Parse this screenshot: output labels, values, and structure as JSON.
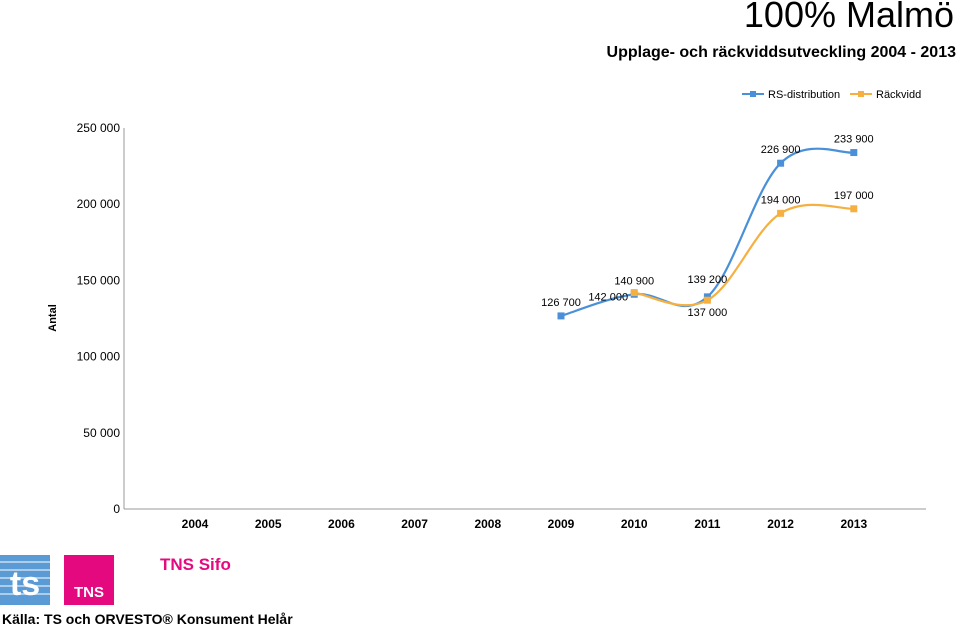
{
  "header": {
    "title": "100% Malmö",
    "subtitle": "Upplage- och räckviddsutveckling 2004 - 2013"
  },
  "logos": {
    "ts": "ts",
    "tns": "TNS",
    "tns_sifo": "TNS Sifo"
  },
  "footer": {
    "source": "Källa: TS och ORVESTO® Konsument Helår"
  },
  "chart_data": {
    "type": "line",
    "title": "",
    "xlabel": "",
    "ylabel": "Antal",
    "categories": [
      "2004",
      "2005",
      "2006",
      "2007",
      "2008",
      "2009",
      "2010",
      "2011",
      "2012",
      "2013"
    ],
    "ylim": [
      0,
      250000
    ],
    "yticks": [
      0,
      50000,
      100000,
      150000,
      200000,
      250000
    ],
    "ytick_labels": [
      "0",
      "50 000",
      "100 000",
      "150 000",
      "200 000",
      "250 000"
    ],
    "grid": false,
    "legend": "top-right",
    "series": [
      {
        "name": "RS-distribution",
        "color": "#4a90d9",
        "values": [
          null,
          null,
          null,
          null,
          null,
          126700,
          140900,
          139200,
          226900,
          233900
        ],
        "labels": [
          "",
          "",
          "",
          "",
          "",
          "126 700",
          "140 900",
          "139 200",
          "226 900",
          "233 900"
        ]
      },
      {
        "name": "Räckvidd",
        "color": "#f5b041",
        "values": [
          null,
          null,
          null,
          null,
          null,
          null,
          142000,
          137000,
          194000,
          197000
        ],
        "labels": [
          "",
          "",
          "",
          "",
          "",
          "",
          "142 000",
          "137 000",
          "194 000",
          "197 000"
        ]
      }
    ]
  }
}
